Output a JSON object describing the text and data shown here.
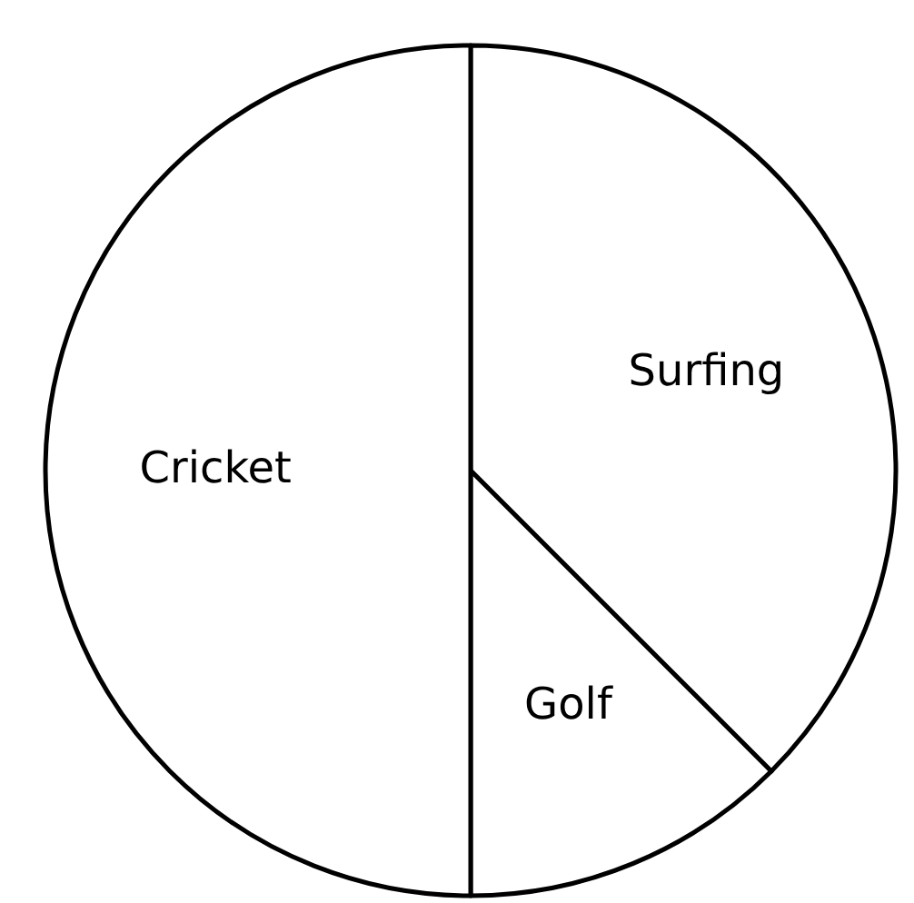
{
  "chart_data": {
    "type": "pie",
    "categories": [
      "Surfing",
      "Golf",
      "Cricket"
    ],
    "values": [
      37.5,
      12.5,
      50
    ],
    "colors": [
      "#ffffff",
      "#ffffff",
      "#ffffff"
    ]
  }
}
